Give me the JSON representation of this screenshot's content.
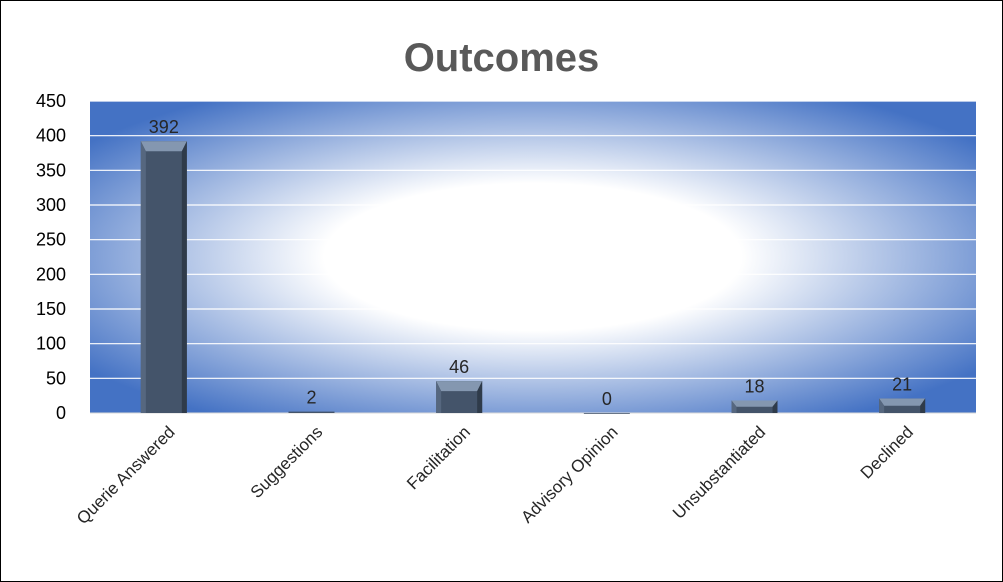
{
  "chart_data": {
    "type": "bar",
    "title": "Outcomes",
    "categories": [
      "Querie Answered",
      "Suggestions",
      "Facilitation",
      "Advisory Opinion",
      "Unsubstantiated",
      "Declined"
    ],
    "values": [
      392,
      2,
      46,
      0,
      18,
      21
    ],
    "data_labels": [
      "392",
      "2",
      "46",
      "0",
      "18",
      "21"
    ],
    "ylim": [
      0,
      450
    ],
    "yticks": [
      0,
      50,
      100,
      150,
      200,
      250,
      300,
      350,
      400,
      450
    ],
    "ytick_labels": [
      "0",
      "50",
      "100",
      "150",
      "200",
      "250",
      "300",
      "350",
      "400",
      "450"
    ],
    "xlabel": "",
    "ylabel": "",
    "grid": true,
    "legend": "none",
    "colors": {
      "bar_face": "#44546a",
      "bar_top": "#8497b0",
      "bar_side": "#2f3b4a",
      "plot_edge": "#4472c4",
      "plot_center": "#ffffff",
      "gridline": "#ffffff",
      "title": "#595959"
    }
  }
}
